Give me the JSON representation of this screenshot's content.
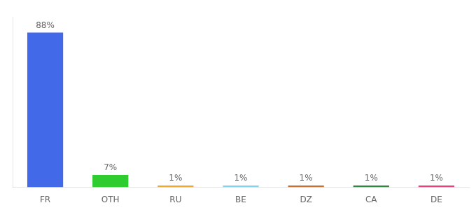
{
  "chart_data": {
    "type": "bar",
    "categories": [
      "FR",
      "OTH",
      "RU",
      "BE",
      "DZ",
      "CA",
      "DE"
    ],
    "values": [
      88,
      7,
      1,
      1,
      1,
      1,
      1
    ],
    "value_labels": [
      "88%",
      "7%",
      "1%",
      "1%",
      "1%",
      "1%",
      "1%"
    ],
    "colors": [
      "#4169e8",
      "#2ecc2e",
      "#f0a830",
      "#7fd4f0",
      "#c87030",
      "#2d8a40",
      "#e84080"
    ],
    "ylim": [
      0,
      97
    ],
    "tick_labels": "x",
    "grid": false
  }
}
